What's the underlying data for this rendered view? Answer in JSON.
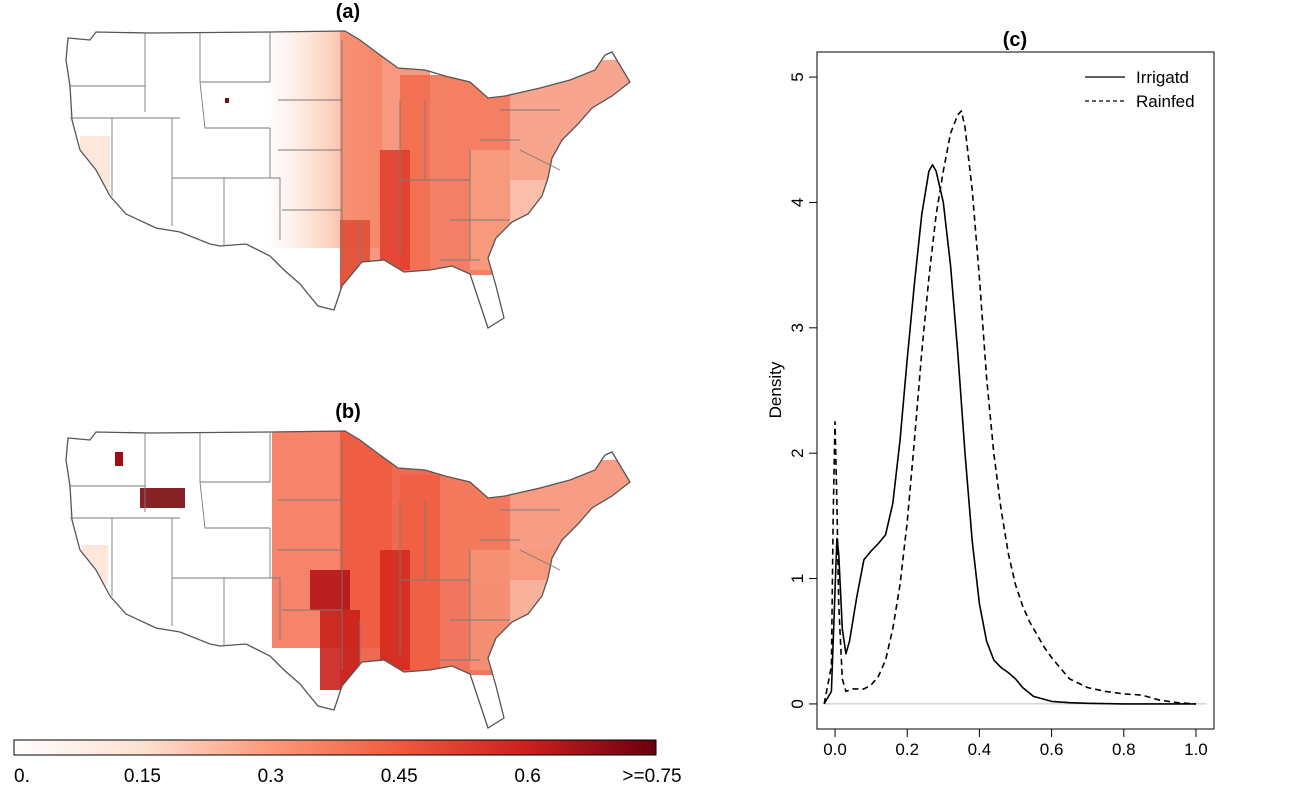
{
  "chart_data": [
    {
      "type": "heatmap",
      "title": "(a)",
      "description_region": "contiguous United States",
      "color_scale": {
        "min": 0.0,
        "max": 0.75
      }
    },
    {
      "type": "heatmap",
      "title": "(b)",
      "description_region": "contiguous United States",
      "color_scale": {
        "min": 0.0,
        "max": 0.75
      }
    },
    {
      "type": "line",
      "title": "(c)",
      "xlabel": "",
      "ylabel": "Density",
      "xlim": [
        -0.05,
        1.05
      ],
      "ylim": [
        0,
        5
      ],
      "x_ticks": [
        "0.0",
        "0.2",
        "0.4",
        "0.6",
        "0.8",
        "1.0"
      ],
      "y_ticks": [
        "0",
        "1",
        "2",
        "3",
        "4",
        "5"
      ],
      "legend_position": "top-right",
      "series": [
        {
          "name": "Irrigatd",
          "style": "solid",
          "x": [
            -0.03,
            -0.01,
            0.0,
            0.005,
            0.01,
            0.02,
            0.03,
            0.04,
            0.06,
            0.08,
            0.1,
            0.12,
            0.14,
            0.16,
            0.18,
            0.2,
            0.22,
            0.24,
            0.26,
            0.27,
            0.28,
            0.3,
            0.32,
            0.34,
            0.36,
            0.38,
            0.4,
            0.42,
            0.44,
            0.46,
            0.48,
            0.5,
            0.52,
            0.55,
            0.6,
            0.65,
            0.7,
            0.8,
            0.9,
            1.0
          ],
          "y": [
            0.0,
            0.1,
            0.9,
            1.32,
            1.2,
            0.6,
            0.4,
            0.5,
            0.85,
            1.15,
            1.22,
            1.28,
            1.35,
            1.6,
            2.1,
            2.75,
            3.35,
            3.9,
            4.25,
            4.3,
            4.25,
            4.0,
            3.5,
            2.8,
            2.0,
            1.3,
            0.8,
            0.5,
            0.35,
            0.29,
            0.25,
            0.2,
            0.13,
            0.06,
            0.02,
            0.01,
            0.005,
            0.0,
            0.0,
            0.0
          ]
        },
        {
          "name": "Rainfed",
          "style": "dashed",
          "x": [
            -0.03,
            -0.01,
            -0.005,
            0.0,
            0.005,
            0.01,
            0.02,
            0.03,
            0.05,
            0.08,
            0.1,
            0.12,
            0.14,
            0.16,
            0.18,
            0.2,
            0.22,
            0.24,
            0.26,
            0.28,
            0.3,
            0.32,
            0.34,
            0.35,
            0.36,
            0.38,
            0.4,
            0.42,
            0.44,
            0.46,
            0.48,
            0.5,
            0.52,
            0.54,
            0.56,
            0.58,
            0.6,
            0.62,
            0.65,
            0.7,
            0.75,
            0.8,
            0.85,
            0.9,
            0.95,
            1.0
          ],
          "y": [
            0.0,
            0.3,
            1.5,
            2.25,
            1.6,
            0.8,
            0.2,
            0.1,
            0.12,
            0.12,
            0.15,
            0.22,
            0.35,
            0.6,
            0.95,
            1.45,
            2.1,
            2.8,
            3.4,
            3.9,
            4.25,
            4.55,
            4.7,
            4.73,
            4.6,
            4.1,
            3.4,
            2.6,
            2.0,
            1.55,
            1.2,
            0.95,
            0.78,
            0.65,
            0.55,
            0.45,
            0.37,
            0.3,
            0.2,
            0.13,
            0.1,
            0.08,
            0.07,
            0.03,
            0.01,
            0.0
          ]
        }
      ]
    }
  ],
  "colorbar": {
    "labels": [
      "0.",
      "0.15",
      "0.3",
      "0.45",
      "0.6",
      ">=0.75"
    ],
    "stops": [
      "#ffffff",
      "#fde0d2",
      "#fb9a7a",
      "#ef5a3f",
      "#cb1f1f",
      "#67000d"
    ]
  },
  "colors": {
    "state_lines": "#7a7a7a",
    "coast": "#555555",
    "map_light": "#fdd5c3",
    "map_mid": "#f47c5c",
    "map_dark": "#d42a1f",
    "map_darkest": "#7a0a10",
    "axis": "#000000",
    "baseline": "#bfbfbf"
  }
}
